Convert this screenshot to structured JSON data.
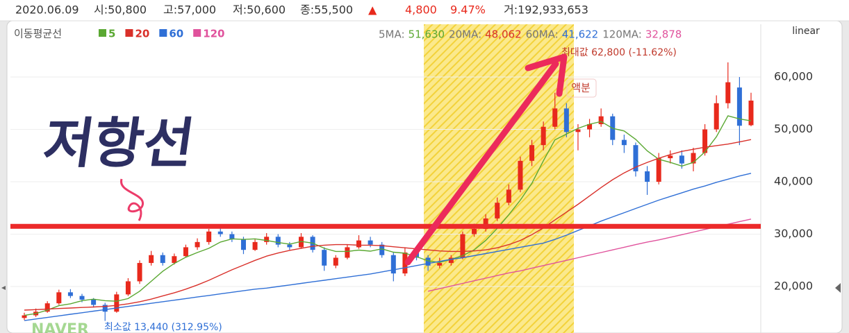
{
  "header": {
    "date": "2020.06.09",
    "open": "시:50,800",
    "high": "고:57,000",
    "low": "저:50,600",
    "close": "종:55,500",
    "arrow": "▲",
    "change": "4,800",
    "change_pct": "9.47%",
    "volume": "거:192,933,653"
  },
  "chart_data": {
    "type": "candlestick",
    "legend_title": "이동평균선",
    "scale_label": "linear",
    "watermark": "NAVER",
    "annotation_text": "저항선",
    "annotation_split": "액분",
    "annotation_max": "최대값 62,800 (-11.62%)",
    "annotation_min": "최소값 13,440 (312.95%)",
    "resistance_line": 31500,
    "up_color": "#e8291c",
    "down_color": "#2f6fd6",
    "grid": true,
    "ylim": [
      11130,
      70070
    ],
    "yticks": [
      {
        "value": 20000,
        "label": "20,000"
      },
      {
        "value": 30000,
        "label": "30,000"
      },
      {
        "value": 40000,
        "label": "40,000"
      },
      {
        "value": 50000,
        "label": "50,000"
      },
      {
        "value": 60000,
        "label": "60,000"
      }
    ],
    "open": [
      14000,
      14500,
      15200,
      16800,
      18900,
      18200,
      17500,
      16500,
      15200,
      18500,
      21000,
      24500,
      26000,
      24500,
      25800,
      27500,
      28500,
      30500,
      30000,
      29000,
      27000,
      28500,
      29500,
      28000,
      27500,
      29500,
      27000,
      24000,
      25500,
      27500,
      28800,
      28000,
      26000,
      22500,
      26500,
      25500,
      24000,
      24500,
      25500,
      30000,
      31000,
      33000,
      36000,
      38500,
      44000,
      47000,
      50500,
      54000,
      49500,
      50000,
      51000,
      52500,
      48000,
      47000,
      42000,
      40000,
      44500,
      45000,
      43500,
      45500,
      50000,
      55000,
      58000,
      50800
    ],
    "high": [
      15000,
      15800,
      17200,
      19400,
      19500,
      18600,
      17800,
      16900,
      19000,
      21600,
      25000,
      26800,
      26500,
      26300,
      28000,
      29200,
      31000,
      31500,
      30500,
      29500,
      29000,
      30200,
      30000,
      28500,
      30200,
      29800,
      27500,
      26000,
      28000,
      29800,
      29500,
      28500,
      26500,
      27500,
      27000,
      26000,
      25500,
      26000,
      30500,
      32000,
      33800,
      37000,
      39500,
      44800,
      48000,
      51500,
      57000,
      55000,
      51000,
      52000,
      54000,
      53000,
      49000,
      47500,
      43000,
      45500,
      46000,
      46000,
      46500,
      51000,
      56500,
      62800,
      60000,
      57000
    ],
    "low": [
      13600,
      14200,
      15000,
      16500,
      17800,
      17000,
      16000,
      13440,
      15000,
      18200,
      20500,
      24000,
      24000,
      24200,
      25500,
      27000,
      28000,
      29500,
      28500,
      26200,
      26800,
      28000,
      27500,
      27000,
      27200,
      26500,
      23000,
      23500,
      25200,
      27200,
      27500,
      25500,
      21000,
      22000,
      25000,
      23000,
      23500,
      24000,
      25200,
      29500,
      30500,
      32500,
      35500,
      38000,
      43000,
      46000,
      50000,
      48500,
      46000,
      48500,
      50500,
      47000,
      45500,
      41000,
      37500,
      39500,
      43500,
      42500,
      42000,
      45000,
      49500,
      54000,
      47000,
      50600
    ],
    "close": [
      14500,
      15200,
      16800,
      18900,
      18200,
      17500,
      16500,
      15200,
      18500,
      21000,
      24500,
      26000,
      24500,
      25800,
      27500,
      28500,
      30500,
      30000,
      29000,
      27000,
      28500,
      29500,
      28000,
      27500,
      29500,
      27000,
      24000,
      25500,
      27500,
      28800,
      28000,
      26000,
      22500,
      26500,
      25500,
      24000,
      24500,
      25500,
      30000,
      31000,
      33000,
      36000,
      38500,
      44000,
      47000,
      50500,
      54000,
      49500,
      50000,
      51000,
      52500,
      48000,
      47000,
      42000,
      40000,
      44500,
      45000,
      43500,
      45500,
      50000,
      55000,
      59000,
      50700,
      55500
    ],
    "series": [
      {
        "name": "5",
        "label": "5MA:",
        "last_label": "51,630",
        "color": "#5aa832",
        "values": [
          14500,
          14850,
          15500,
          16350,
          16700,
          17300,
          17600,
          17300,
          17200,
          17700,
          19100,
          21000,
          22900,
          24400,
          25600,
          26500,
          27300,
          28500,
          29100,
          29000,
          29100,
          28800,
          28400,
          28100,
          28600,
          28300,
          27300,
          26700,
          26700,
          26960,
          26760,
          27200,
          26560,
          26360,
          25700,
          24900,
          24600,
          25200,
          25900,
          27000,
          28800,
          31100,
          33700,
          36500,
          39700,
          44000,
          48000,
          49100,
          50200,
          51000,
          51500,
          50200,
          49700,
          48100,
          45900,
          44300,
          43700,
          43000,
          43700,
          45700,
          48600,
          52600,
          52000,
          51630
        ]
      },
      {
        "name": "20",
        "label": "20MA:",
        "last_label": "48,062",
        "color": "#d9302a",
        "values": [
          15500,
          15600,
          15700,
          15800,
          15900,
          16000,
          16100,
          16200,
          16400,
          16700,
          17100,
          17600,
          18200,
          18800,
          19500,
          20300,
          21200,
          22200,
          23200,
          24100,
          25000,
          25800,
          26400,
          26900,
          27300,
          27700,
          27900,
          28000,
          28000,
          27900,
          27900,
          27800,
          27600,
          27400,
          27200,
          27000,
          26800,
          26700,
          26700,
          26800,
          27000,
          27400,
          28000,
          28800,
          29900,
          31200,
          32700,
          34200,
          35700,
          37300,
          38900,
          40400,
          41700,
          42800,
          43700,
          44500,
          45200,
          45800,
          46200,
          46600,
          46900,
          47200,
          47600,
          48062
        ]
      },
      {
        "name": "60",
        "label": "60MA:",
        "last_label": "41,622",
        "color": "#2f6fd6",
        "values": [
          13500,
          13800,
          14100,
          14400,
          14700,
          15000,
          15300,
          15600,
          15900,
          16200,
          16500,
          16800,
          17100,
          17400,
          17700,
          18000,
          18300,
          18600,
          18900,
          19200,
          19500,
          19700,
          20000,
          20300,
          20600,
          20900,
          21200,
          21500,
          21800,
          22100,
          22400,
          22800,
          23200,
          23600,
          24000,
          24400,
          24800,
          25200,
          25500,
          25900,
          26300,
          26700,
          27100,
          27500,
          27900,
          28300,
          29000,
          29800,
          30700,
          31600,
          32500,
          33300,
          34100,
          34900,
          35700,
          36500,
          37200,
          37900,
          38600,
          39200,
          39900,
          40500,
          41100,
          41622
        ]
      },
      {
        "name": "120",
        "label": "120MA:",
        "last_label": "32,878",
        "color": "#e0529c",
        "values": [
          null,
          null,
          null,
          null,
          null,
          null,
          null,
          null,
          null,
          null,
          null,
          null,
          null,
          null,
          null,
          null,
          null,
          null,
          null,
          null,
          null,
          null,
          null,
          null,
          null,
          null,
          null,
          null,
          null,
          null,
          null,
          null,
          null,
          null,
          null,
          19100,
          19600,
          20100,
          20600,
          21100,
          21600,
          22100,
          22600,
          23000,
          23500,
          24000,
          24500,
          25000,
          25500,
          26000,
          26500,
          27000,
          27500,
          28000,
          28500,
          28900,
          29400,
          29900,
          30400,
          30900,
          31400,
          31900,
          32400,
          32878
        ]
      }
    ]
  }
}
